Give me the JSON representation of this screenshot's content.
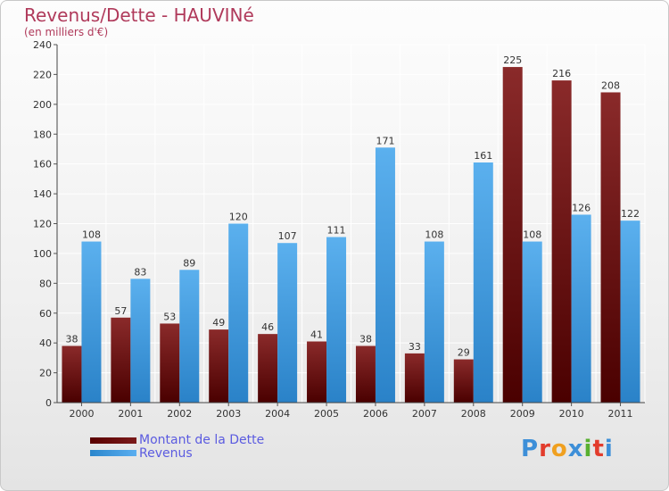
{
  "colors": {
    "dette": "#6b0f0f",
    "revenus": "#3f9be0",
    "title": "#b03a5b",
    "legend_text": "#5b5be0"
  },
  "chart_data": {
    "type": "bar",
    "title": "Revenus/Dette - HAUVINé",
    "subtitle": "(en milliers d'€)",
    "categories": [
      "2000",
      "2001",
      "2002",
      "2003",
      "2004",
      "2005",
      "2006",
      "2007",
      "2008",
      "2009",
      "2010",
      "2011"
    ],
    "series": [
      {
        "name": "Montant de la Dette",
        "values": [
          38,
          57,
          53,
          49,
          46,
          41,
          38,
          33,
          29,
          225,
          216,
          208
        ]
      },
      {
        "name": "Revenus",
        "values": [
          108,
          83,
          89,
          120,
          107,
          111,
          171,
          108,
          161,
          108,
          126,
          122
        ]
      }
    ],
    "ylim": [
      0,
      240
    ],
    "yticks": [
      0,
      20,
      40,
      60,
      80,
      100,
      120,
      140,
      160,
      180,
      200,
      220,
      240
    ],
    "grid": true,
    "legend_position": "bottom-left"
  },
  "logo": {
    "text": "Proxiti"
  }
}
